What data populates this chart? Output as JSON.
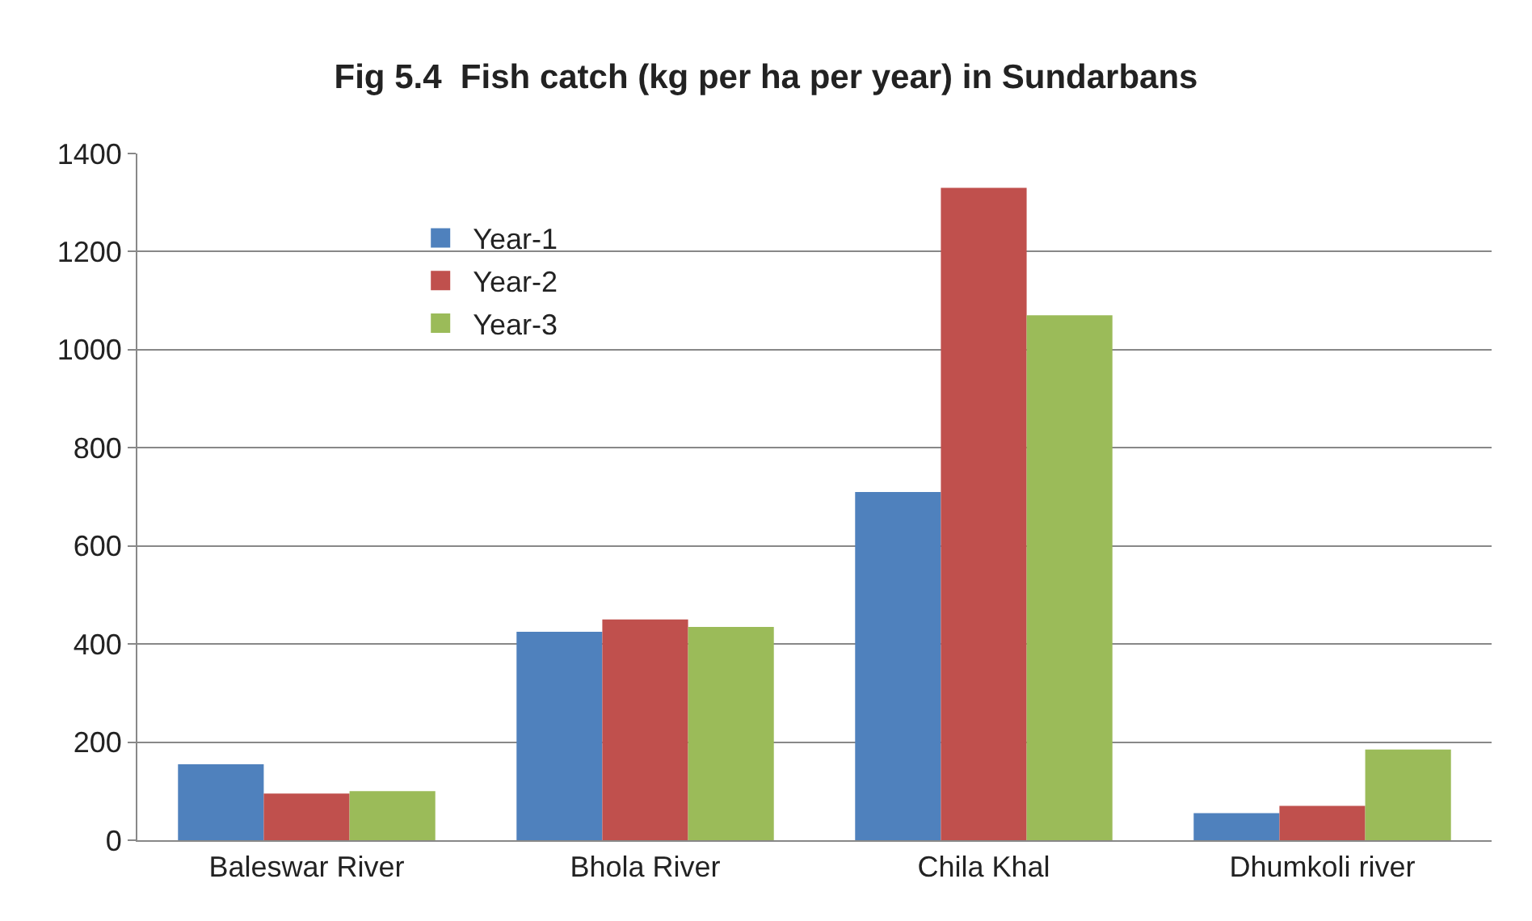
{
  "chart_data": {
    "type": "bar",
    "title": "Fig 5.4  Fish catch (kg per ha per year) in Sundarbans",
    "categories": [
      "Baleswar River",
      "Bhola River",
      "Chila Khal",
      "Dhumkoli river"
    ],
    "series": [
      {
        "name": "Year-1",
        "color": "#4f81bd",
        "values": [
          155,
          425,
          710,
          55
        ]
      },
      {
        "name": "Year-2",
        "color": "#c0504d",
        "values": [
          95,
          450,
          1330,
          70
        ]
      },
      {
        "name": "Year-3",
        "color": "#9bbb59",
        "values": [
          100,
          435,
          1070,
          185
        ]
      }
    ],
    "ylim": [
      0,
      1400
    ],
    "yticks": [
      0,
      200,
      400,
      600,
      800,
      1000,
      1200,
      1400
    ],
    "grid": "y",
    "legend": "top left"
  }
}
